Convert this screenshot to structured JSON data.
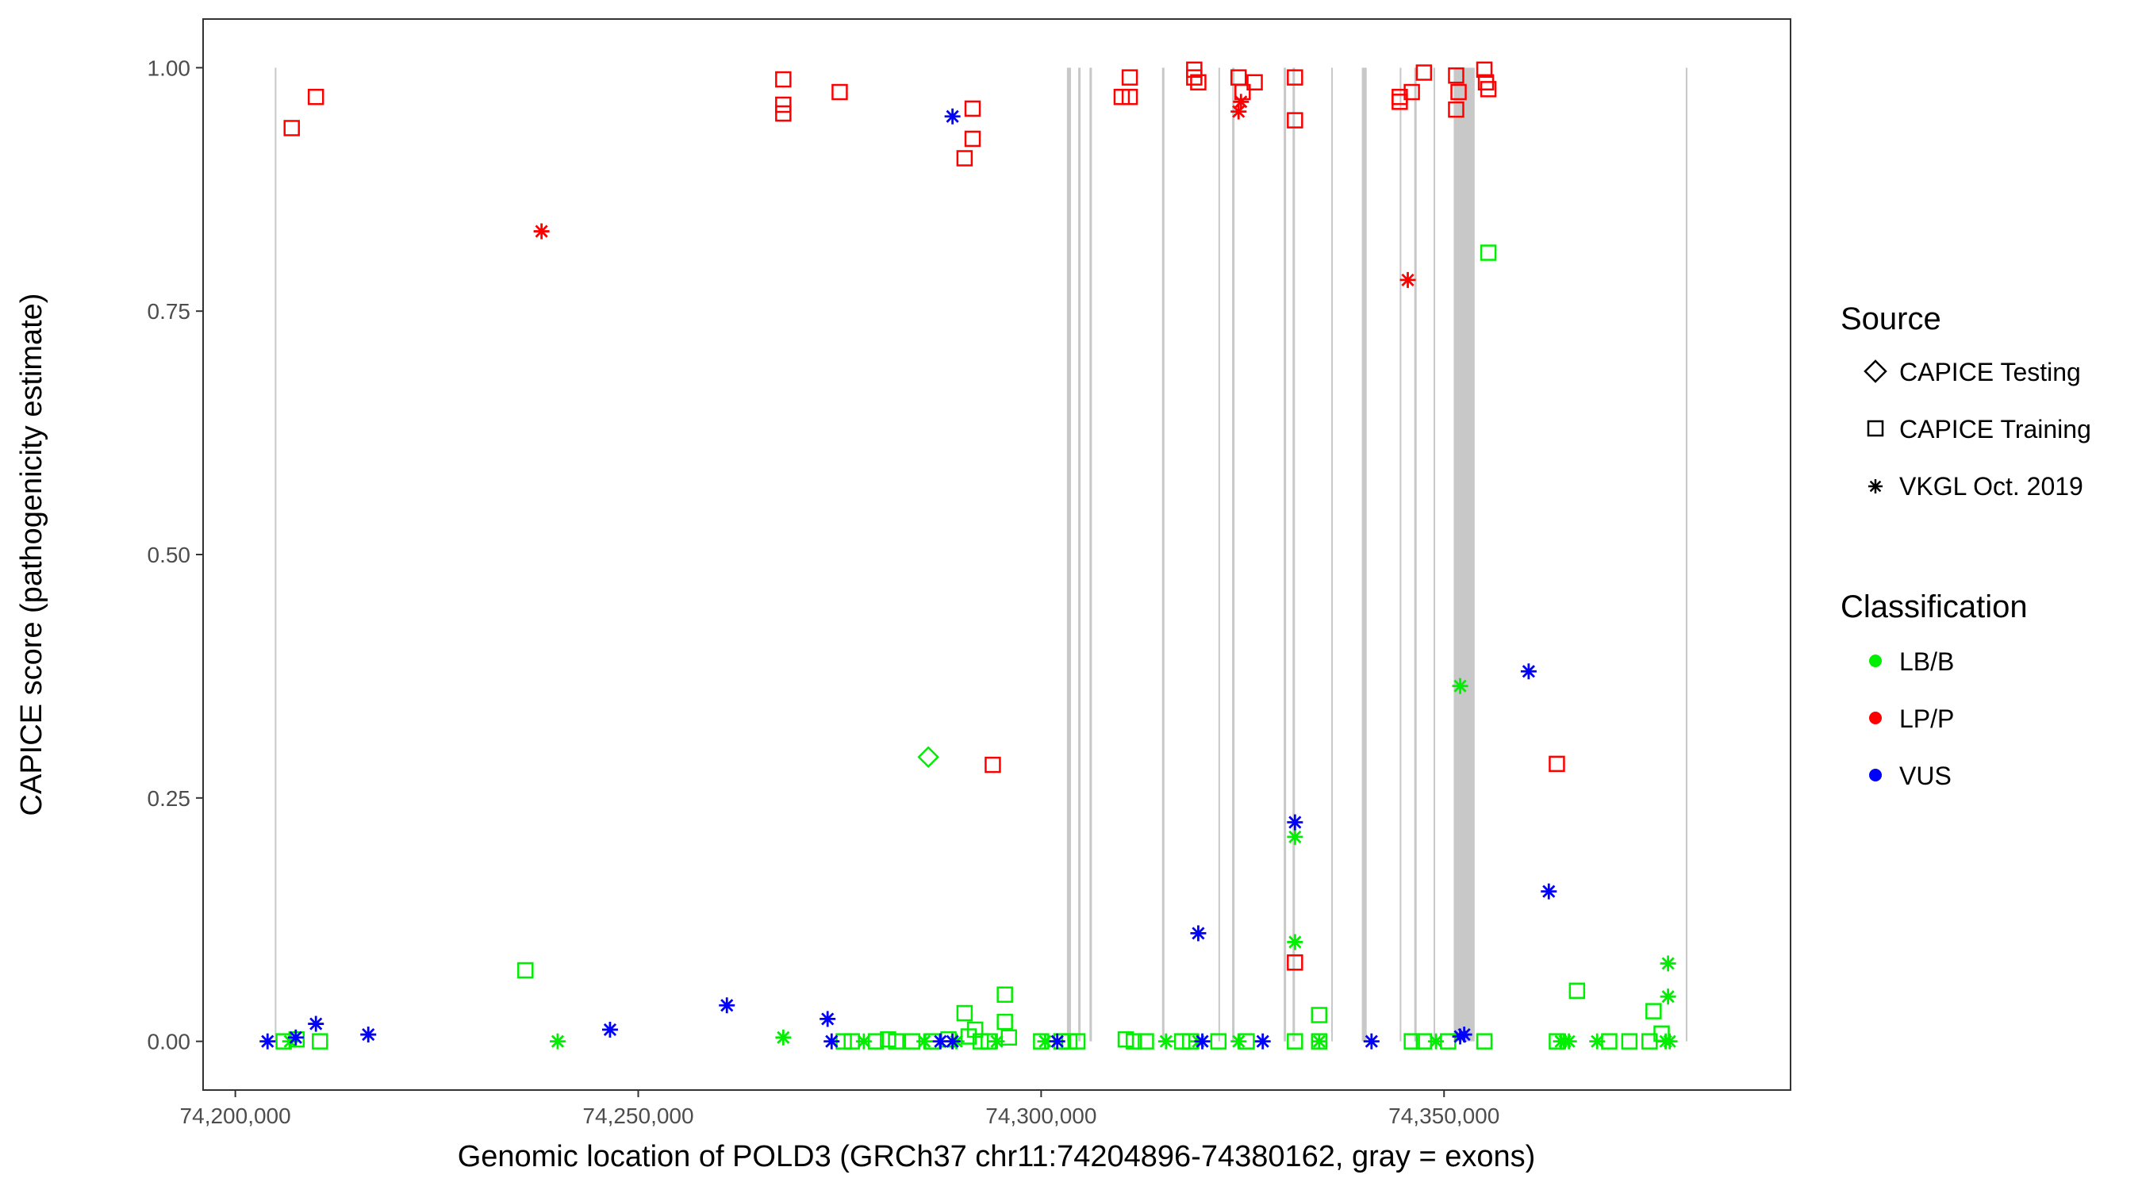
{
  "chart_data": {
    "type": "scatter",
    "xlabel": "Genomic location of POLD3 (GRCh37 chr11:74204896-74380162, gray = exons)",
    "ylabel": "CAPICE score (pathogenicity estimate)",
    "xlim": [
      74196000,
      74393000
    ],
    "ylim": [
      -0.05,
      1.05
    ],
    "x_ticks": [
      74200000,
      74250000,
      74300000,
      74350000
    ],
    "x_tick_labels": [
      "74,200,000",
      "74,250,000",
      "74,300,000",
      "74,350,000"
    ],
    "y_ticks": [
      0,
      0.25,
      0.5,
      0.75,
      1.0
    ],
    "y_tick_labels": [
      "0.00",
      "0.25",
      "0.50",
      "0.75",
      "1.00"
    ],
    "grid": false,
    "legend_position": "right",
    "exons": [
      [
        74204896,
        74205000
      ],
      [
        74303200,
        74303700
      ],
      [
        74304600,
        74304900
      ],
      [
        74306000,
        74306300
      ],
      [
        74315000,
        74315300
      ],
      [
        74322000,
        74322200
      ],
      [
        74323700,
        74324000
      ],
      [
        74330100,
        74330400
      ],
      [
        74331200,
        74331500
      ],
      [
        74336000,
        74336200
      ],
      [
        74339800,
        74340400
      ],
      [
        74344500,
        74344700
      ],
      [
        74346300,
        74346600
      ],
      [
        74348700,
        74348900
      ],
      [
        74351200,
        74353800
      ],
      [
        74380000,
        74380162
      ]
    ],
    "legend_source": {
      "title": "Source",
      "items": [
        {
          "label": "CAPICE Testing",
          "shape": "diamond"
        },
        {
          "label": "CAPICE Training",
          "shape": "square"
        },
        {
          "label": "VKGL Oct. 2019",
          "shape": "asterisk"
        }
      ]
    },
    "legend_classification": {
      "title": "Classification",
      "items": [
        {
          "label": "LB/B",
          "color": "#00ee00"
        },
        {
          "label": "LP/P",
          "color": "#ff0000"
        },
        {
          "label": "VUS",
          "color": "#0000ff"
        }
      ]
    },
    "series": [
      {
        "name": "LB/B",
        "color": "#00ee00",
        "points": [
          [
            74206000,
            0.0,
            "square"
          ],
          [
            74206800,
            0.0,
            "asterisk"
          ],
          [
            74207600,
            0.002,
            "square"
          ],
          [
            74210500,
            0.0,
            "square"
          ],
          [
            74236000,
            0.073,
            "square"
          ],
          [
            74240000,
            0.0,
            "asterisk"
          ],
          [
            74268000,
            0.004,
            "asterisk"
          ],
          [
            74275500,
            0.0,
            "square"
          ],
          [
            74276500,
            0.0,
            "square"
          ],
          [
            74278000,
            0.0,
            "asterisk"
          ],
          [
            74279500,
            0.0,
            "square"
          ],
          [
            74281000,
            0.002,
            "square"
          ],
          [
            74282000,
            0.0,
            "square"
          ],
          [
            74284000,
            0.0,
            "square"
          ],
          [
            74285500,
            0.0,
            "asterisk"
          ],
          [
            74286000,
            0.292,
            "diamond"
          ],
          [
            74286500,
            0.0,
            "square"
          ],
          [
            74288500,
            0.002,
            "square"
          ],
          [
            74289500,
            0.0,
            "asterisk"
          ],
          [
            74290500,
            0.029,
            "square"
          ],
          [
            74291000,
            0.005,
            "square"
          ],
          [
            74291800,
            0.012,
            "square"
          ],
          [
            74292500,
            0.0,
            "square"
          ],
          [
            74293500,
            0.0,
            "square"
          ],
          [
            74294500,
            0.0,
            "asterisk"
          ],
          [
            74295500,
            0.048,
            "square"
          ],
          [
            74295500,
            0.02,
            "square"
          ],
          [
            74296000,
            0.004,
            "square"
          ],
          [
            74300000,
            0.0,
            "square"
          ],
          [
            74300500,
            0.0,
            "asterisk"
          ],
          [
            74302500,
            0.0,
            "square"
          ],
          [
            74303500,
            0.0,
            "square"
          ],
          [
            74304500,
            0.0,
            "square"
          ],
          [
            74310500,
            0.002,
            "square"
          ],
          [
            74311500,
            0.0,
            "square"
          ],
          [
            74313000,
            0.0,
            "square"
          ],
          [
            74315500,
            0.0,
            "asterisk"
          ],
          [
            74317500,
            0.0,
            "square"
          ],
          [
            74318500,
            0.0,
            "square"
          ],
          [
            74319500,
            0.0,
            "asterisk"
          ],
          [
            74322000,
            0.0,
            "square"
          ],
          [
            74324500,
            0.0,
            "asterisk"
          ],
          [
            74325500,
            0.0,
            "square"
          ],
          [
            74331500,
            0.21,
            "asterisk"
          ],
          [
            74331500,
            0.102,
            "asterisk"
          ],
          [
            74331500,
            0.0,
            "square"
          ],
          [
            74334500,
            0.027,
            "square"
          ],
          [
            74334500,
            0.0,
            "asterisk"
          ],
          [
            74334500,
            0.0,
            "square"
          ],
          [
            74346000,
            0.0,
            "square"
          ],
          [
            74347500,
            0.0,
            "square"
          ],
          [
            74349000,
            0.0,
            "asterisk"
          ],
          [
            74350500,
            0.0,
            "square"
          ],
          [
            74352000,
            0.365,
            "asterisk"
          ],
          [
            74355000,
            0.0,
            "square"
          ],
          [
            74355500,
            0.81,
            "square"
          ],
          [
            74364000,
            0.0,
            "square"
          ],
          [
            74364500,
            0.0,
            "asterisk"
          ],
          [
            74365000,
            0.0,
            "asterisk"
          ],
          [
            74365500,
            0.0,
            "asterisk"
          ],
          [
            74366500,
            0.052,
            "square"
          ],
          [
            74369000,
            0.0,
            "asterisk"
          ],
          [
            74370500,
            0.0,
            "square"
          ],
          [
            74373000,
            0.0,
            "square"
          ],
          [
            74375500,
            0.0,
            "square"
          ],
          [
            74376000,
            0.031,
            "square"
          ],
          [
            74377000,
            0.008,
            "square"
          ],
          [
            74377500,
            0.0,
            "asterisk"
          ],
          [
            74377800,
            0.08,
            "asterisk"
          ],
          [
            74377800,
            0.046,
            "asterisk"
          ],
          [
            74378000,
            0.0,
            "asterisk"
          ]
        ]
      },
      {
        "name": "LP/P",
        "color": "#ff0000",
        "points": [
          [
            74207000,
            0.938,
            "square"
          ],
          [
            74210000,
            0.97,
            "square"
          ],
          [
            74238000,
            0.832,
            "asterisk"
          ],
          [
            74268000,
            0.988,
            "square"
          ],
          [
            74268000,
            0.962,
            "square"
          ],
          [
            74268000,
            0.953,
            "square"
          ],
          [
            74275000,
            0.975,
            "square"
          ],
          [
            74290500,
            0.907,
            "square"
          ],
          [
            74291500,
            0.958,
            "square"
          ],
          [
            74291500,
            0.927,
            "square"
          ],
          [
            74294000,
            0.284,
            "square"
          ],
          [
            74310000,
            0.97,
            "square"
          ],
          [
            74311000,
            0.97,
            "square"
          ],
          [
            74311000,
            0.99,
            "square"
          ],
          [
            74319000,
            0.998,
            "square"
          ],
          [
            74319500,
            0.985,
            "square"
          ],
          [
            74319000,
            0.99,
            "square"
          ],
          [
            74324500,
            0.99,
            "square"
          ],
          [
            74325000,
            0.975,
            "square"
          ],
          [
            74324500,
            0.955,
            "asterisk"
          ],
          [
            74324800,
            0.965,
            "asterisk"
          ],
          [
            74326500,
            0.985,
            "square"
          ],
          [
            74331500,
            0.99,
            "square"
          ],
          [
            74331500,
            0.946,
            "square"
          ],
          [
            74331500,
            0.081,
            "square"
          ],
          [
            74344500,
            0.97,
            "square"
          ],
          [
            74344500,
            0.965,
            "square"
          ],
          [
            74345500,
            0.782,
            "asterisk"
          ],
          [
            74346000,
            0.975,
            "square"
          ],
          [
            74347500,
            0.995,
            "square"
          ],
          [
            74351500,
            0.992,
            "square"
          ],
          [
            74351800,
            0.975,
            "square"
          ],
          [
            74351500,
            0.957,
            "square"
          ],
          [
            74355000,
            0.998,
            "square"
          ],
          [
            74355200,
            0.985,
            "square"
          ],
          [
            74355500,
            0.978,
            "square"
          ],
          [
            74364000,
            0.285,
            "square"
          ]
        ]
      },
      {
        "name": "VUS",
        "color": "#0000ff",
        "points": [
          [
            74204000,
            0.0,
            "asterisk"
          ],
          [
            74207500,
            0.004,
            "asterisk"
          ],
          [
            74210000,
            0.018,
            "asterisk"
          ],
          [
            74216500,
            0.007,
            "asterisk"
          ],
          [
            74246500,
            0.012,
            "asterisk"
          ],
          [
            74261000,
            0.037,
            "asterisk"
          ],
          [
            74273500,
            0.023,
            "asterisk"
          ],
          [
            74274000,
            0.0,
            "asterisk"
          ],
          [
            74287500,
            0.0,
            "asterisk"
          ],
          [
            74289000,
            0.0,
            "asterisk"
          ],
          [
            74289000,
            0.95,
            "asterisk"
          ],
          [
            74302000,
            0.0,
            "asterisk"
          ],
          [
            74319500,
            0.111,
            "asterisk"
          ],
          [
            74320000,
            0.0,
            "asterisk"
          ],
          [
            74327500,
            0.0,
            "asterisk"
          ],
          [
            74331500,
            0.225,
            "asterisk"
          ],
          [
            74341000,
            0.0,
            "asterisk"
          ],
          [
            74352000,
            0.005,
            "asterisk"
          ],
          [
            74352500,
            0.007,
            "asterisk"
          ],
          [
            74360500,
            0.38,
            "asterisk"
          ],
          [
            74363000,
            0.154,
            "asterisk"
          ]
        ]
      }
    ]
  }
}
